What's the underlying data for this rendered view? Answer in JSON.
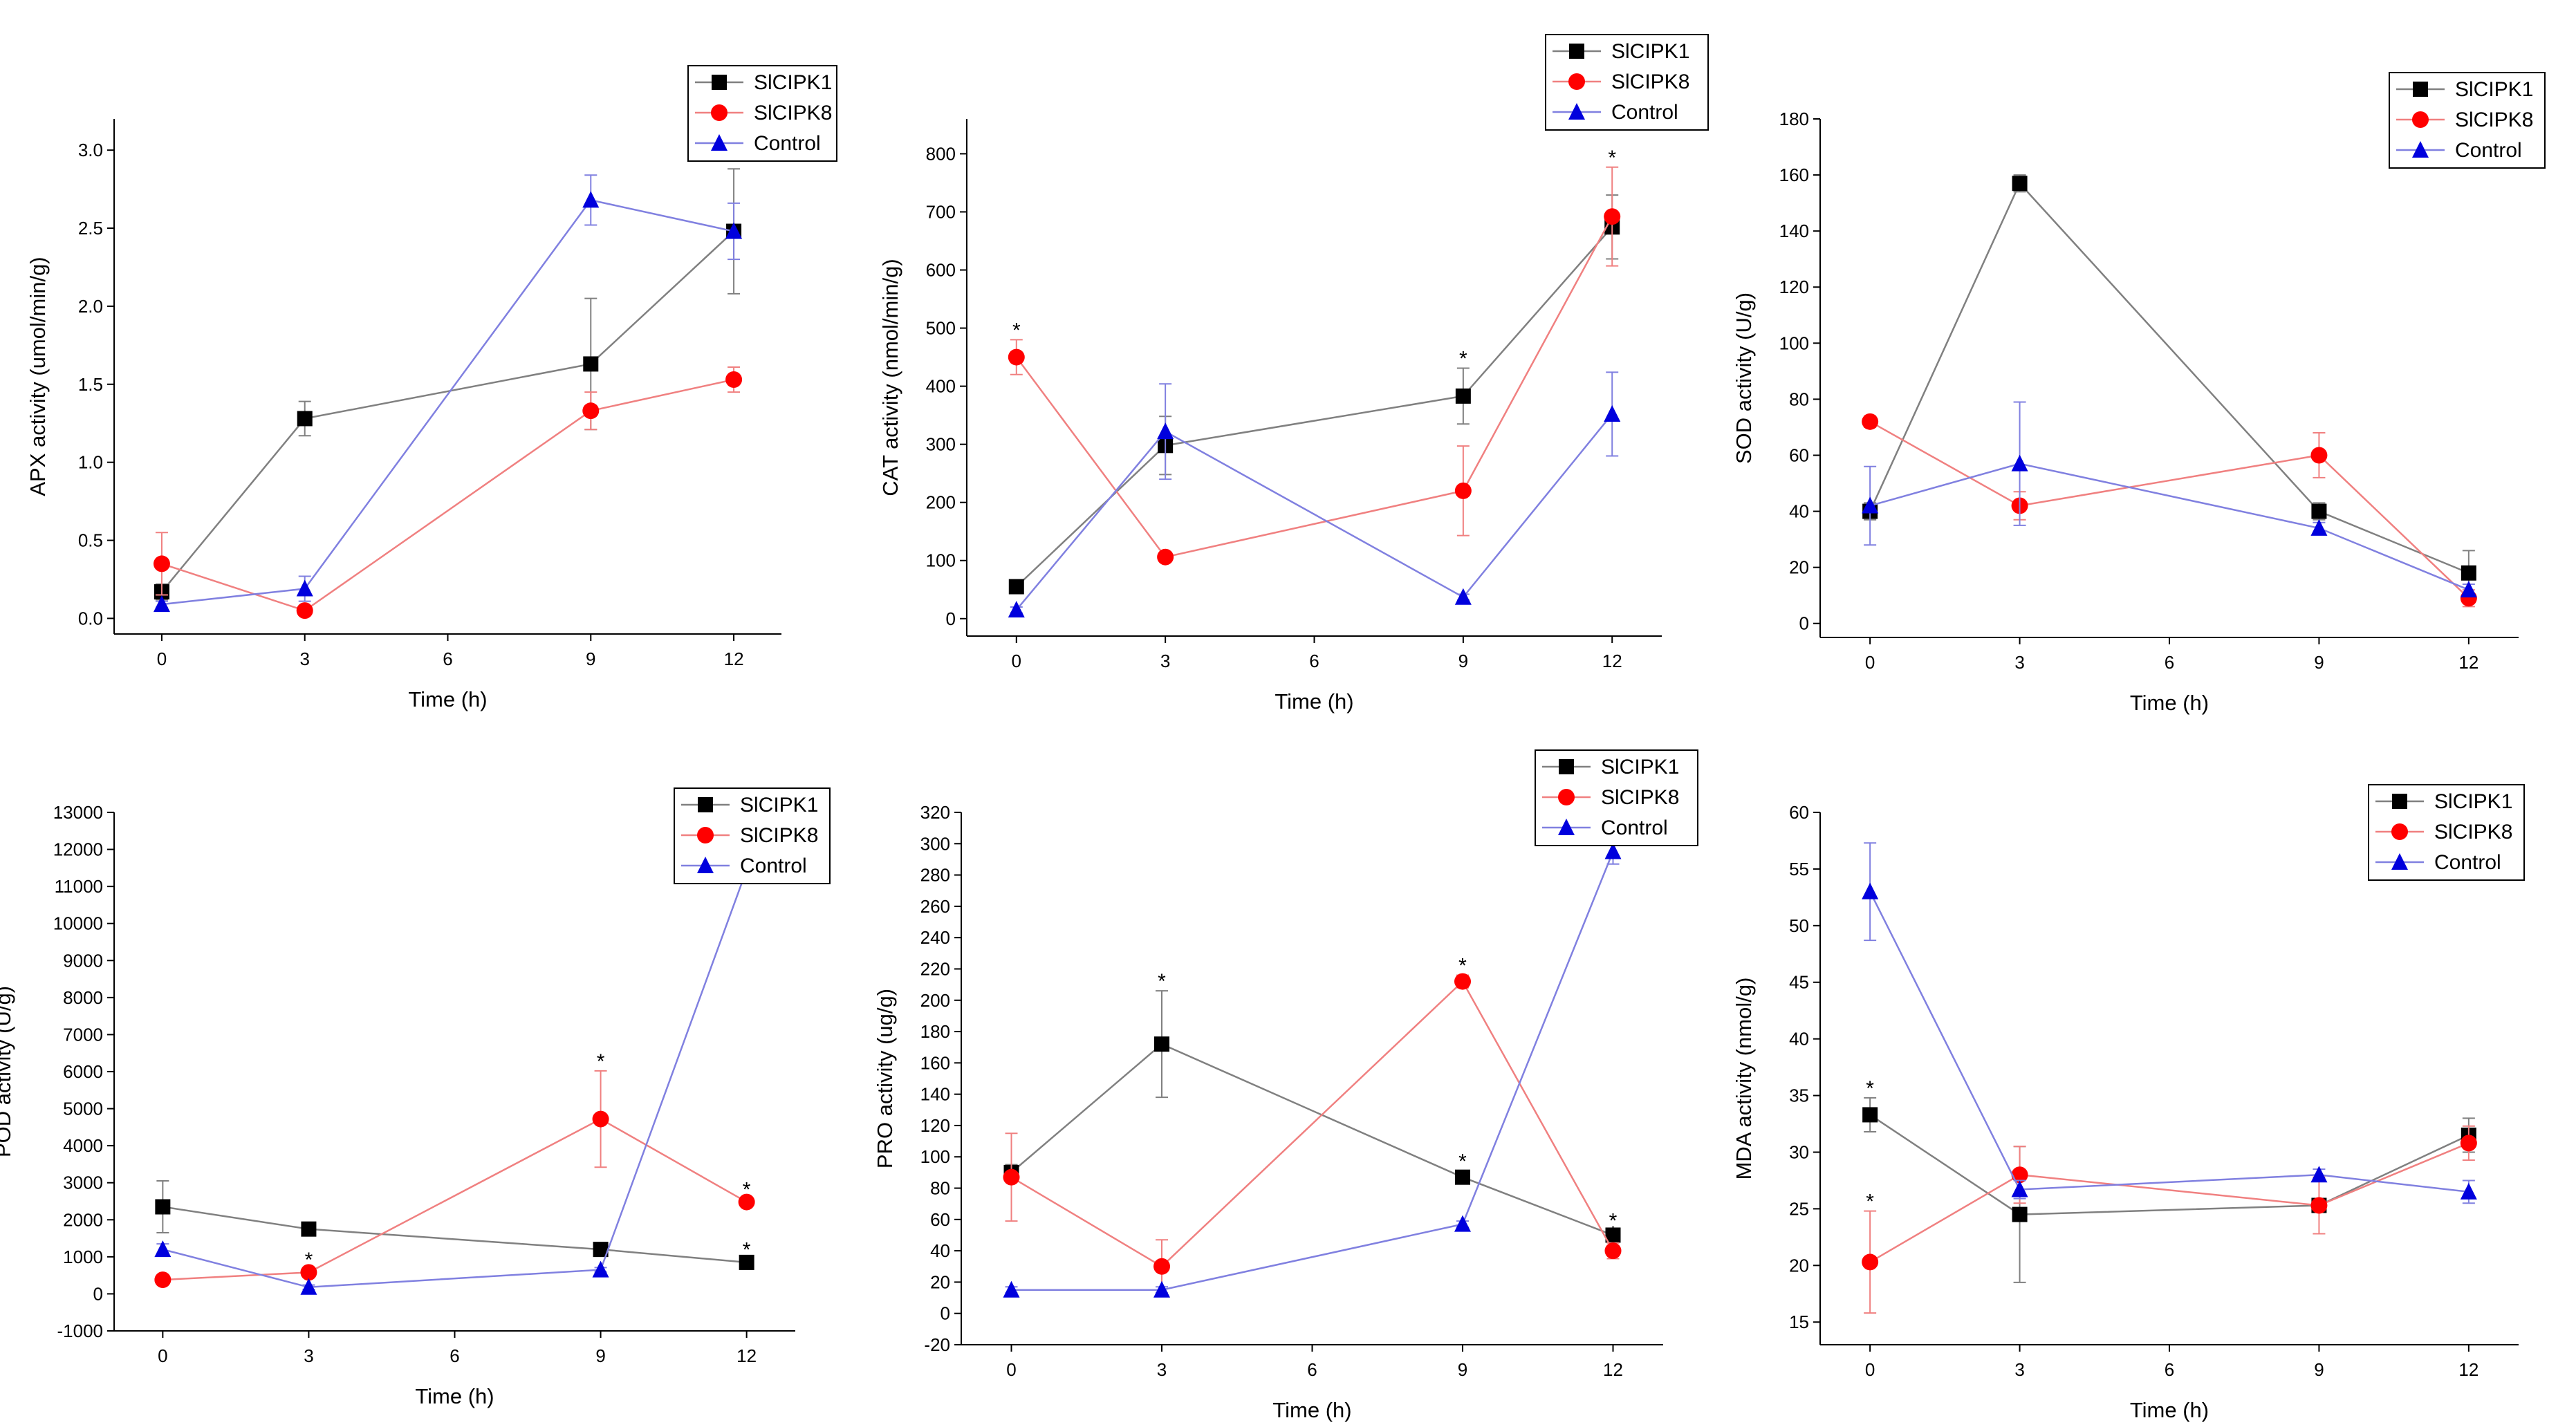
{
  "colors": {
    "SlCIPK1": "#000000",
    "SlCIPK8": "#ff0000",
    "Control": "#0000dd",
    "SlCIPK1_line": "#808080",
    "SlCIPK8_line": "#f08080",
    "Control_line": "#8080e0",
    "axis": "#000000"
  },
  "chart_data": [
    {
      "type": "line",
      "title": "",
      "xlabel": "Time (h)",
      "ylabel": "APX activity (umol/min/g)",
      "x": [
        0,
        3,
        9,
        12
      ],
      "xticks": [
        "0",
        "3",
        "6",
        "9",
        "12"
      ],
      "xlim": [
        -1,
        13
      ],
      "ylim": [
        -0.1,
        3.2
      ],
      "yticks": [
        "0.0",
        "0.5",
        "1.0",
        "1.5",
        "2.0",
        "2.5",
        "3.0"
      ],
      "legend": {
        "position": "top-right",
        "labels": [
          "SlCIPK1",
          "SlCIPK8",
          "Control"
        ]
      },
      "series": [
        {
          "name": "SlCIPK1",
          "marker": "square",
          "values": [
            0.17,
            1.28,
            1.63,
            2.48
          ],
          "errors": [
            0.05,
            0.11,
            0.42,
            0.4
          ],
          "stars": [
            false,
            false,
            false,
            false
          ]
        },
        {
          "name": "SlCIPK8",
          "marker": "circle",
          "values": [
            0.35,
            0.05,
            1.33,
            1.53
          ],
          "errors": [
            0.2,
            0.03,
            0.12,
            0.08
          ],
          "stars": [
            false,
            false,
            false,
            false
          ]
        },
        {
          "name": "Control",
          "marker": "triangle",
          "values": [
            0.09,
            0.19,
            2.68,
            2.48
          ],
          "errors": [
            0.02,
            0.08,
            0.16,
            0.18
          ],
          "stars": [
            false,
            false,
            false,
            false
          ]
        }
      ]
    },
    {
      "type": "line",
      "title": "",
      "xlabel": "Time (h)",
      "ylabel": "CAT activity (nmol/min/g)",
      "x": [
        0,
        3,
        9,
        12
      ],
      "xticks": [
        "0",
        "3",
        "6",
        "9",
        "12"
      ],
      "xlim": [
        -1,
        13
      ],
      "ylim": [
        -30,
        860
      ],
      "yticks": [
        "0",
        "100",
        "200",
        "300",
        "400",
        "500",
        "600",
        "700",
        "800"
      ],
      "legend": {
        "position": "top-right",
        "labels": [
          "SlCIPK1",
          "SlCIPK8",
          "Control"
        ]
      },
      "series": [
        {
          "name": "SlCIPK1",
          "marker": "square",
          "values": [
            55,
            298,
            383,
            674
          ],
          "errors": [
            8,
            50,
            48,
            55
          ],
          "stars": [
            false,
            false,
            true,
            false
          ]
        },
        {
          "name": "SlCIPK8",
          "marker": "circle",
          "values": [
            450,
            106,
            220,
            692
          ],
          "errors": [
            30,
            8,
            77,
            85
          ],
          "stars": [
            true,
            false,
            false,
            true
          ]
        },
        {
          "name": "Control",
          "marker": "triangle",
          "values": [
            15,
            322,
            37,
            352
          ],
          "errors": [
            5,
            82,
            5,
            72
          ],
          "stars": [
            false,
            false,
            false,
            false
          ]
        }
      ]
    },
    {
      "type": "line",
      "title": "",
      "xlabel": "Time (h)",
      "ylabel": "SOD activity (U/g)",
      "x": [
        0,
        3,
        9,
        12
      ],
      "xticks": [
        "0",
        "3",
        "6",
        "9",
        "12"
      ],
      "xlim": [
        -1,
        13
      ],
      "ylim": [
        -5,
        180
      ],
      "yticks": [
        "0",
        "20",
        "40",
        "60",
        "80",
        "100",
        "120",
        "140",
        "160",
        "180"
      ],
      "legend": {
        "position": "top-right",
        "labels": [
          "SlCIPK1",
          "SlCIPK8",
          "Control"
        ]
      },
      "series": [
        {
          "name": "SlCIPK1",
          "marker": "square",
          "values": [
            40,
            157,
            40,
            18
          ],
          "errors": [
            3,
            3,
            3,
            8
          ],
          "stars": [
            false,
            false,
            false,
            false
          ]
        },
        {
          "name": "SlCIPK8",
          "marker": "circle",
          "values": [
            72,
            42,
            60,
            9
          ],
          "errors": [
            2,
            5,
            8,
            3
          ],
          "stars": [
            false,
            false,
            false,
            false
          ]
        },
        {
          "name": "Control",
          "marker": "triangle",
          "values": [
            42,
            57,
            34,
            12
          ],
          "errors": [
            14,
            22,
            2,
            2
          ],
          "stars": [
            false,
            false,
            false,
            false
          ]
        }
      ]
    },
    {
      "type": "line",
      "title": "",
      "xlabel": "Time (h)",
      "ylabel": "POD activity (U/g)",
      "x": [
        0,
        3,
        9,
        12
      ],
      "xticks": [
        "0",
        "3",
        "6",
        "9",
        "12"
      ],
      "xlim": [
        -1,
        13
      ],
      "ylim": [
        -1000,
        13000
      ],
      "yticks": [
        "-1000",
        "0",
        "1000",
        "2000",
        "3000",
        "4000",
        "5000",
        "6000",
        "7000",
        "8000",
        "9000",
        "10000",
        "11000",
        "12000",
        "13000"
      ],
      "legend": {
        "position": "top-right",
        "labels": [
          "SlCIPK1",
          "SlCIPK8",
          "Control"
        ]
      },
      "series": [
        {
          "name": "SlCIPK1",
          "marker": "square",
          "values": [
            2350,
            1750,
            1200,
            850
          ],
          "errors": [
            700,
            80,
            80,
            80
          ],
          "stars": [
            false,
            false,
            false,
            true
          ]
        },
        {
          "name": "SlCIPK8",
          "marker": "circle",
          "values": [
            380,
            580,
            4720,
            2480
          ],
          "errors": [
            60,
            80,
            1300,
            80
          ],
          "stars": [
            false,
            true,
            true,
            true
          ]
        },
        {
          "name": "Control",
          "marker": "triangle",
          "values": [
            1200,
            180,
            650,
            11450
          ],
          "errors": [
            150,
            60,
            60,
            350
          ],
          "stars": [
            false,
            false,
            false,
            false
          ]
        }
      ]
    },
    {
      "type": "line",
      "title": "",
      "xlabel": "Time (h)",
      "ylabel": "PRO activity (ug/g)",
      "x": [
        0,
        3,
        9,
        12
      ],
      "xticks": [
        "0",
        "3",
        "6",
        "9",
        "12"
      ],
      "xlim": [
        -1,
        13
      ],
      "ylim": [
        -20,
        320
      ],
      "yticks": [
        "-20",
        "0",
        "20",
        "40",
        "60",
        "80",
        "100",
        "120",
        "140",
        "160",
        "180",
        "200",
        "220",
        "240",
        "260",
        "280",
        "300",
        "320"
      ],
      "legend": {
        "position": "top-right",
        "labels": [
          "SlCIPK1",
          "SlCIPK8",
          "Control"
        ]
      },
      "series": [
        {
          "name": "SlCIPK1",
          "marker": "square",
          "values": [
            90,
            172,
            87,
            50
          ],
          "errors": [
            5,
            34,
            4,
            3
          ],
          "stars": [
            false,
            true,
            true,
            true
          ]
        },
        {
          "name": "SlCIPK8",
          "marker": "circle",
          "values": [
            87,
            30,
            212,
            40
          ],
          "errors": [
            28,
            17,
            4,
            5
          ],
          "stars": [
            false,
            false,
            true,
            true
          ]
        },
        {
          "name": "Control",
          "marker": "triangle",
          "values": [
            15,
            15,
            57,
            295
          ],
          "errors": [
            2,
            2,
            2,
            8
          ],
          "stars": [
            false,
            false,
            false,
            false
          ]
        }
      ]
    },
    {
      "type": "line",
      "title": "",
      "xlabel": "Time (h)",
      "ylabel": "MDA activity (nmol/g)",
      "x": [
        0,
        3,
        9,
        12
      ],
      "xticks": [
        "0",
        "3",
        "6",
        "9",
        "12"
      ],
      "xlim": [
        -1,
        13
      ],
      "ylim": [
        13,
        60
      ],
      "yticks": [
        "15",
        "20",
        "25",
        "30",
        "35",
        "40",
        "45",
        "50",
        "55",
        "60"
      ],
      "legend": {
        "position": "top-right",
        "labels": [
          "SlCIPK1",
          "SlCIPK8",
          "Control"
        ]
      },
      "series": [
        {
          "name": "SlCIPK1",
          "marker": "square",
          "values": [
            33.3,
            24.5,
            25.3,
            31.5
          ],
          "errors": [
            1.5,
            6,
            0.5,
            1.5
          ],
          "stars": [
            true,
            false,
            false,
            false
          ]
        },
        {
          "name": "SlCIPK8",
          "marker": "circle",
          "values": [
            20.3,
            28,
            25.3,
            30.8
          ],
          "errors": [
            4.5,
            2.5,
            2.5,
            1.5
          ],
          "stars": [
            true,
            false,
            false,
            false
          ]
        },
        {
          "name": "Control",
          "marker": "triangle",
          "values": [
            53,
            26.7,
            28,
            26.5
          ],
          "errors": [
            4.3,
            0.8,
            0.5,
            1
          ],
          "stars": [
            false,
            false,
            false,
            false
          ]
        }
      ]
    }
  ]
}
